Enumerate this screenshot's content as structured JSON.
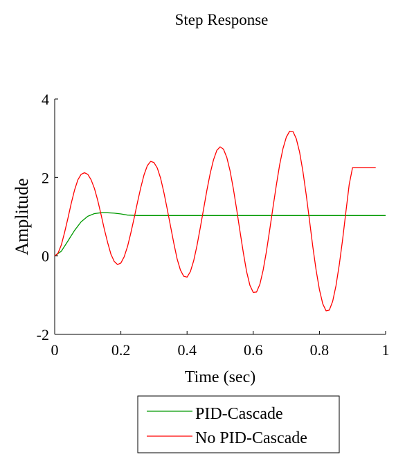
{
  "chart_data": {
    "type": "line",
    "title": "Step Response",
    "xlabel": "Time (sec)",
    "ylabel": "Amplitude",
    "xlim": [
      0,
      1
    ],
    "ylim": [
      -2,
      4
    ],
    "xticks": [
      0,
      0.2,
      0.4,
      0.6,
      0.8,
      1
    ],
    "xtick_labels": [
      "0",
      "0.2",
      "0.4",
      "0.6",
      "0.8",
      "1"
    ],
    "yticks": [
      -2,
      0,
      2,
      4
    ],
    "ytick_labels": [
      "-2",
      "0",
      "2",
      "4"
    ],
    "grid": false,
    "legend_position": "bottom",
    "series": [
      {
        "name": "PID-Cascade",
        "color": "#009900",
        "x": [
          0,
          0.02,
          0.04,
          0.06,
          0.08,
          0.1,
          0.12,
          0.14,
          0.16,
          0.18,
          0.2,
          0.22,
          0.25,
          0.3,
          0.4,
          0.5,
          0.6,
          0.7,
          0.8,
          0.9,
          1.0
        ],
        "y": [
          0,
          0.12,
          0.38,
          0.65,
          0.87,
          1.01,
          1.08,
          1.1,
          1.1,
          1.09,
          1.07,
          1.04,
          1.03,
          1.03,
          1.03,
          1.03,
          1.03,
          1.03,
          1.03,
          1.03,
          1.03
        ]
      },
      {
        "name": "No PID-Cascade",
        "color": "#ff0000",
        "x": [
          0,
          0.01,
          0.02,
          0.03,
          0.04,
          0.05,
          0.06,
          0.07,
          0.08,
          0.09,
          0.1,
          0.11,
          0.12,
          0.13,
          0.14,
          0.15,
          0.16,
          0.17,
          0.18,
          0.19,
          0.2,
          0.21,
          0.22,
          0.23,
          0.24,
          0.25,
          0.26,
          0.27,
          0.28,
          0.29,
          0.3,
          0.31,
          0.32,
          0.33,
          0.34,
          0.35,
          0.36,
          0.37,
          0.38,
          0.39,
          0.4,
          0.41,
          0.42,
          0.43,
          0.44,
          0.45,
          0.46,
          0.47,
          0.48,
          0.49,
          0.5,
          0.51,
          0.52,
          0.53,
          0.54,
          0.55,
          0.56,
          0.57,
          0.58,
          0.59,
          0.6,
          0.61,
          0.62,
          0.63,
          0.64,
          0.65,
          0.66,
          0.67,
          0.68,
          0.69,
          0.7,
          0.71,
          0.72,
          0.73,
          0.74,
          0.75,
          0.76,
          0.77,
          0.78,
          0.79,
          0.8,
          0.81,
          0.82,
          0.83,
          0.84,
          0.85,
          0.86,
          0.87,
          0.88,
          0.89,
          0.9,
          0.91,
          0.92,
          0.93,
          0.94,
          0.95,
          0.96,
          0.97
        ],
        "y": [
          0,
          0.07,
          0.28,
          0.6,
          0.96,
          1.34,
          1.68,
          1.94,
          2.08,
          2.12,
          2.08,
          1.94,
          1.72,
          1.42,
          1.06,
          0.68,
          0.34,
          0.04,
          -0.14,
          -0.22,
          -0.18,
          -0.02,
          0.24,
          0.58,
          0.96,
          1.36,
          1.74,
          2.07,
          2.3,
          2.41,
          2.38,
          2.24,
          1.98,
          1.62,
          1.2,
          0.76,
          0.32,
          -0.08,
          -0.36,
          -0.52,
          -0.54,
          -0.4,
          -0.12,
          0.26,
          0.72,
          1.2,
          1.68,
          2.11,
          2.45,
          2.69,
          2.78,
          2.72,
          2.51,
          2.17,
          1.71,
          1.18,
          0.62,
          0.08,
          -0.4,
          -0.75,
          -0.93,
          -0.92,
          -0.72,
          -0.36,
          0.12,
          0.68,
          1.26,
          1.82,
          2.33,
          2.74,
          3.03,
          3.18,
          3.17,
          2.99,
          2.65,
          2.16,
          1.56,
          0.9,
          0.24,
          -0.36,
          -0.86,
          -1.22,
          -1.4,
          -1.38,
          -1.16,
          -0.76,
          -0.22,
          0.42,
          1.12,
          1.82,
          2.25,
          2.25,
          2.25,
          2.25,
          2.25,
          2.25,
          2.25,
          2.25
        ]
      }
    ]
  }
}
